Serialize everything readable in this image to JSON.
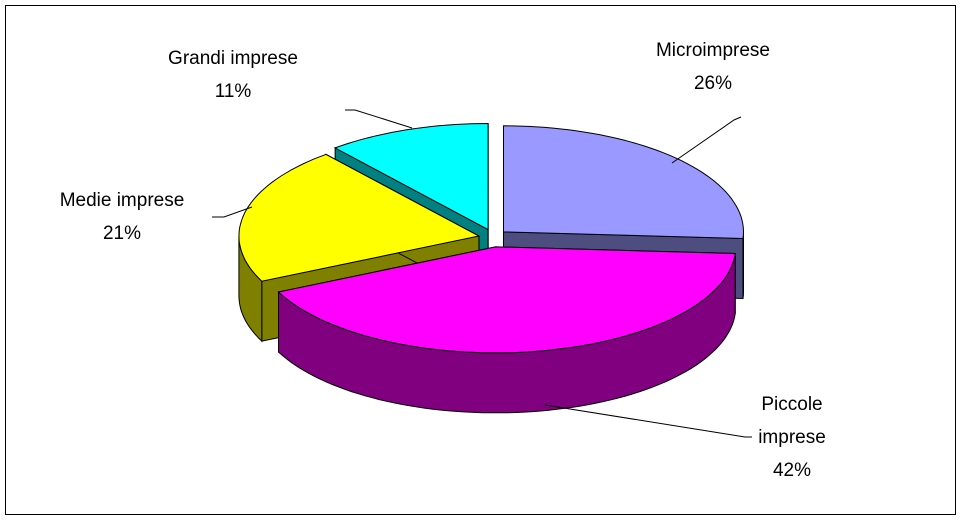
{
  "chart_data": {
    "type": "pie",
    "categories": [
      "Microimprese",
      "Piccole imprese",
      "Medie imprese",
      "Grandi imprese"
    ],
    "values": [
      26,
      42,
      21,
      11
    ],
    "value_labels": [
      "26%",
      "42%",
      "21%",
      "11%"
    ],
    "colors": [
      "#9999ff",
      "#ff00ff",
      "#ffff00",
      "#00ffff"
    ],
    "three_d": true,
    "exploded": true
  }
}
